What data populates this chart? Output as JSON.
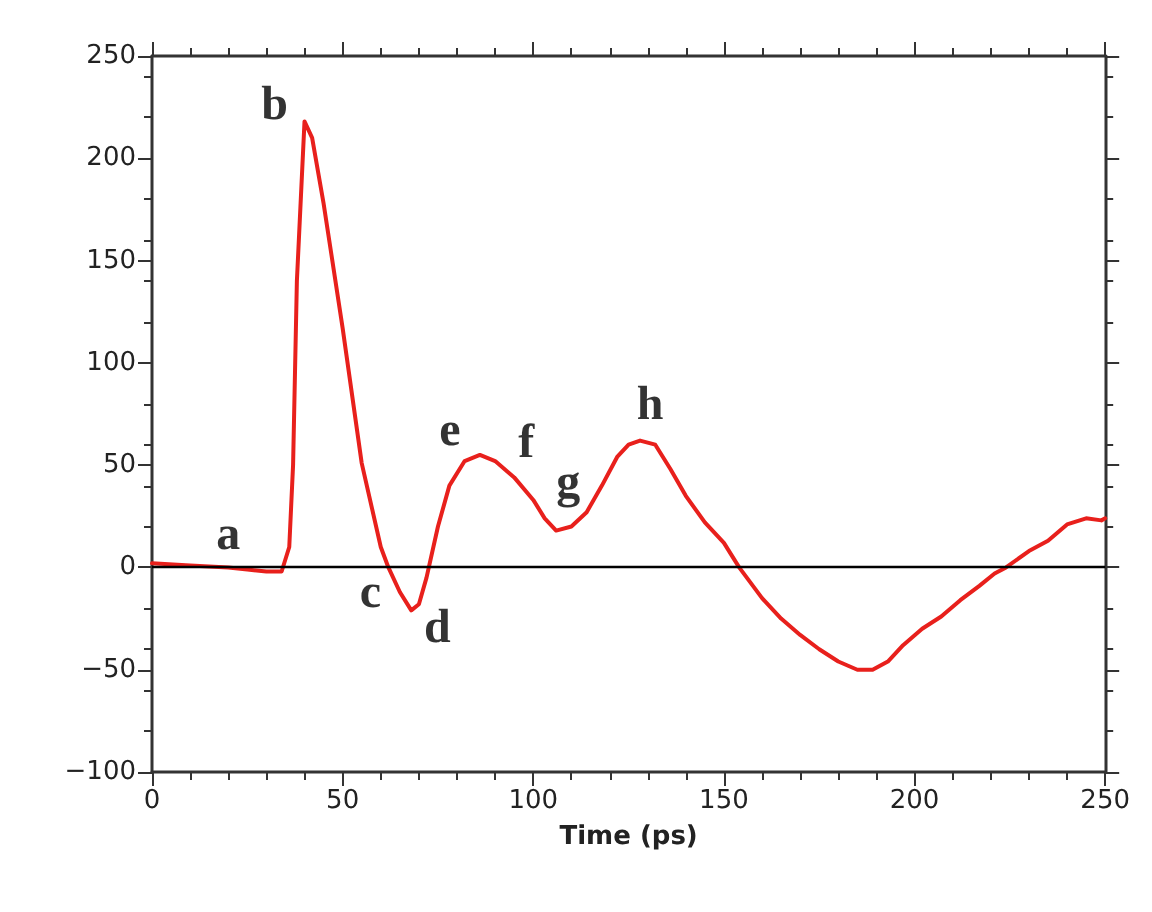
{
  "chart_data": {
    "type": "line",
    "xlabel": "Time (ps)",
    "x": [
      0,
      10,
      20,
      25,
      30,
      34,
      36,
      37,
      38,
      40,
      42,
      45,
      50,
      55,
      60,
      62,
      65,
      68,
      70,
      72,
      75,
      78,
      82,
      86,
      90,
      95,
      100,
      103,
      106,
      110,
      114,
      118,
      122,
      125,
      128,
      132,
      136,
      140,
      145,
      150,
      154,
      160,
      165,
      170,
      175,
      180,
      185,
      189,
      193,
      197,
      202,
      207,
      212,
      217,
      221,
      224,
      230,
      235,
      240,
      245,
      249,
      250
    ],
    "series": [
      {
        "color": "#e8201c",
        "values": [
          2,
          1,
          0,
          -1,
          -2,
          -2,
          10,
          50,
          140,
          218,
          210,
          178,
          117,
          51,
          10,
          0,
          -12,
          -21,
          -18,
          -5,
          20,
          40,
          52,
          55,
          52,
          44,
          33,
          24,
          18,
          20,
          27,
          40,
          54,
          60,
          62,
          60,
          48,
          35,
          22,
          12,
          0,
          -15,
          -25,
          -33,
          -40,
          -46,
          -50,
          -50,
          -46,
          -38,
          -30,
          -24,
          -16,
          -9,
          -3,
          0,
          8,
          13,
          21,
          24,
          23,
          24
        ]
      }
    ],
    "xlim": [
      0,
      250
    ],
    "xticks": [
      0,
      50,
      100,
      150,
      200,
      250
    ],
    "ylim": [
      -100,
      250
    ],
    "yticks": [
      -100,
      -50,
      0,
      50,
      100,
      150,
      200,
      250
    ],
    "grid": false,
    "marker": "none",
    "line_style": "solid",
    "ref_lines": [
      {
        "axis": "y",
        "value": 0,
        "color": "#000000"
      }
    ],
    "annotations": [
      {
        "text": "a",
        "x": 20,
        "y": 0
      },
      {
        "text": "b",
        "x": 40,
        "y": 218
      },
      {
        "text": "c",
        "x": 62,
        "y": 0
      },
      {
        "text": "d",
        "x": 68,
        "y": -21
      },
      {
        "text": "e",
        "x": 86,
        "y": 55
      },
      {
        "text": "f",
        "x": 95,
        "y": 44
      },
      {
        "text": "g",
        "x": 106,
        "y": 18
      },
      {
        "text": "h",
        "x": 128,
        "y": 62
      }
    ]
  }
}
